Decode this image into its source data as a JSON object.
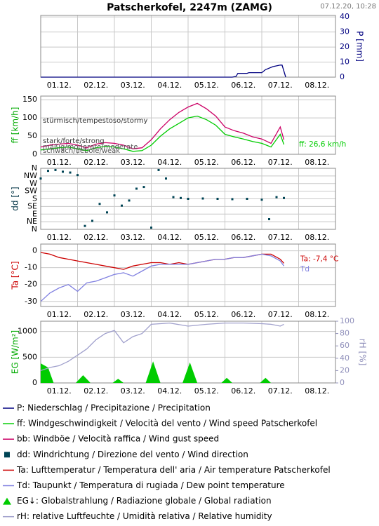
{
  "header": {
    "title": "Patscherkofel, 2247m (ZAMG)",
    "timestamp": "07.12.20, 10:28"
  },
  "chart_data": [
    {
      "type": "line",
      "y_axis_position": "right",
      "ylabel": "P [mm]",
      "label_color": "#000080",
      "xlim": [
        0,
        8
      ],
      "xticks": [
        {
          "value": 0.5,
          "label": "01.12."
        },
        {
          "value": 1.5,
          "label": "02.12."
        },
        {
          "value": 2.5,
          "label": "03.12."
        },
        {
          "value": 3.5,
          "label": "04.12."
        },
        {
          "value": 4.5,
          "label": "05.12."
        },
        {
          "value": 5.5,
          "label": "06.12."
        },
        {
          "value": 6.5,
          "label": "07.12."
        },
        {
          "value": 7.5,
          "label": "08.12."
        }
      ],
      "ylim": [
        0,
        41
      ],
      "yticks": [
        0,
        10,
        20,
        30,
        40
      ],
      "grid": true,
      "series": [
        {
          "name": "P: Niederschlag / Precipitazione / Precipitation",
          "color": "#000080",
          "x": [
            0,
            5.2,
            5.3,
            5.35,
            5.6,
            5.65,
            6.0,
            6.1,
            6.3,
            6.5,
            6.55,
            6.65
          ],
          "values": [
            0,
            0,
            0.5,
            2.5,
            2.5,
            3,
            3,
            5,
            7,
            8,
            8,
            0
          ]
        }
      ]
    },
    {
      "type": "line",
      "ylabel": "ff [km/h]",
      "label_color": "#00aa00",
      "xlim": [
        0,
        8
      ],
      "xticks": [
        {
          "value": 0.5,
          "label": "01.12."
        },
        {
          "value": 1.5,
          "label": "02.12."
        },
        {
          "value": 2.5,
          "label": "03.12."
        },
        {
          "value": 3.5,
          "label": "04.12."
        },
        {
          "value": 4.5,
          "label": "05.12."
        },
        {
          "value": 5.5,
          "label": "06.12."
        },
        {
          "value": 6.5,
          "label": "07.12."
        },
        {
          "value": 7.5,
          "label": "08.12."
        }
      ],
      "ylim": [
        0,
        160
      ],
      "yticks": [
        0,
        50,
        100,
        150
      ],
      "grid": true,
      "annotations": [
        "stürmisch/tempestoso/stormy",
        "stark/forte/strong",
        "mäßig/moderato/moderate",
        "schwach/debole/weak",
        "ff: 26,6 km/h"
      ],
      "x": [
        0,
        0.25,
        0.5,
        0.75,
        1,
        1.25,
        1.5,
        1.75,
        2,
        2.25,
        2.5,
        2.75,
        3,
        3.25,
        3.5,
        3.75,
        4,
        4.25,
        4.5,
        4.75,
        5,
        5.25,
        5.5,
        5.75,
        6,
        6.25,
        6.5,
        6.6
      ],
      "series": [
        {
          "name": "ff: Windgeschwindigkeit / Velocità del vento / Wind speed  Patscherkofel",
          "color": "#00cc00",
          "values": [
            12,
            15,
            18,
            20,
            15,
            10,
            18,
            22,
            20,
            15,
            8,
            10,
            25,
            50,
            70,
            85,
            100,
            105,
            95,
            80,
            55,
            48,
            42,
            35,
            30,
            20,
            55,
            27
          ]
        },
        {
          "name": "bb: Windböe / Velocità raffica / Wind gust speed",
          "color": "#cc0066",
          "values": [
            20,
            25,
            28,
            30,
            25,
            18,
            28,
            32,
            30,
            25,
            15,
            18,
            40,
            70,
            95,
            115,
            130,
            140,
            125,
            105,
            75,
            65,
            58,
            48,
            42,
            30,
            75,
            40
          ]
        }
      ]
    },
    {
      "type": "scatter",
      "ylabel": "dd [°]",
      "label_color": "#003344",
      "xlim": [
        0,
        8
      ],
      "xticks": [
        {
          "value": 0.5,
          "label": "01.12."
        },
        {
          "value": 1.5,
          "label": "02.12."
        },
        {
          "value": 2.5,
          "label": "03.12."
        },
        {
          "value": 3.5,
          "label": "04.12."
        },
        {
          "value": 4.5,
          "label": "05.12."
        },
        {
          "value": 5.5,
          "label": "06.12."
        },
        {
          "value": 6.5,
          "label": "07.12."
        },
        {
          "value": 7.5,
          "label": "08.12."
        }
      ],
      "ylim": [
        0,
        360
      ],
      "yticks": [
        {
          "value": 0,
          "label": "N"
        },
        {
          "value": 45,
          "label": "NE"
        },
        {
          "value": 90,
          "label": "E"
        },
        {
          "value": 135,
          "label": "SE"
        },
        {
          "value": 180,
          "label": "S"
        },
        {
          "value": 225,
          "label": "SW"
        },
        {
          "value": 270,
          "label": "W"
        },
        {
          "value": 315,
          "label": "NW"
        },
        {
          "value": 360,
          "label": "N"
        }
      ],
      "grid": true,
      "x": [
        0,
        0.2,
        0.4,
        0.6,
        0.8,
        1.0,
        1.2,
        1.4,
        1.6,
        1.8,
        2.0,
        2.2,
        2.4,
        2.6,
        2.8,
        3.0,
        3.2,
        3.4,
        3.6,
        3.8,
        4.0,
        4.4,
        4.8,
        5.2,
        5.6,
        6.0,
        6.2,
        6.4,
        6.6
      ],
      "series": [
        {
          "name": "dd: Windrichtung / Direzione del vento / Wind direction",
          "color": "#004455",
          "values": [
            300,
            345,
            350,
            340,
            335,
            320,
            20,
            50,
            150,
            100,
            200,
            140,
            170,
            240,
            250,
            10,
            350,
            300,
            190,
            185,
            180,
            182,
            180,
            178,
            180,
            175,
            60,
            190,
            185
          ]
        }
      ]
    },
    {
      "type": "line",
      "ylabel": "Ta [°C]",
      "label_color": "#cc0000",
      "xlim": [
        0,
        8
      ],
      "xticks": [
        {
          "value": 0.5,
          "label": "01.12."
        },
        {
          "value": 1.5,
          "label": "02.12."
        },
        {
          "value": 2.5,
          "label": "03.12."
        },
        {
          "value": 3.5,
          "label": "04.12."
        },
        {
          "value": 4.5,
          "label": "05.12."
        },
        {
          "value": 5.5,
          "label": "06.12."
        },
        {
          "value": 6.5,
          "label": "07.12."
        },
        {
          "value": 7.5,
          "label": "08.12."
        }
      ],
      "ylim": [
        -33,
        4
      ],
      "yticks": [
        0,
        -10,
        -20,
        -30
      ],
      "grid": true,
      "annotations": [
        "Ta: -7,4 °C",
        "Td"
      ],
      "x": [
        0,
        0.25,
        0.5,
        0.75,
        1,
        1.25,
        1.5,
        1.75,
        2,
        2.25,
        2.5,
        2.75,
        3,
        3.25,
        3.5,
        3.75,
        4,
        4.25,
        4.5,
        4.75,
        5,
        5.25,
        5.5,
        5.75,
        6,
        6.25,
        6.5,
        6.6
      ],
      "series": [
        {
          "name": "Ta: Lufttemperatur / Temperatura dell' aria / Air temperature  Patscherkofel",
          "color": "#cc0000",
          "values": [
            -1,
            -2,
            -4,
            -5,
            -6,
            -7,
            -8,
            -9,
            -10,
            -11,
            -9,
            -8,
            -7,
            -7,
            -8,
            -7,
            -8,
            -7,
            -6,
            -5,
            -5,
            -4,
            -4,
            -3,
            -2,
            -2,
            -5,
            -7.4
          ]
        },
        {
          "name": "Td: Taupunkt / Temperatura di rugiada / Dew point temperature",
          "color": "#8080e0",
          "values": [
            -30,
            -25,
            -22,
            -20,
            -24,
            -19,
            -18,
            -16,
            -14,
            -13,
            -15,
            -12,
            -9,
            -8,
            -8,
            -8,
            -8,
            -7,
            -6,
            -5,
            -5,
            -4,
            -4,
            -3,
            -2,
            -3,
            -6,
            -9
          ]
        }
      ]
    },
    {
      "type": "line",
      "ylabel": "EG [W/m²]",
      "label_color": "#00aa00",
      "y2label": "rH [%]",
      "y2_color": "#9090bb",
      "xlim": [
        0,
        8
      ],
      "xticks": [
        {
          "value": 0.5,
          "label": "01.12."
        },
        {
          "value": 1.5,
          "label": "02.12."
        },
        {
          "value": 2.5,
          "label": "03.12."
        },
        {
          "value": 3.5,
          "label": "04.12."
        },
        {
          "value": 4.5,
          "label": "05.12."
        },
        {
          "value": 5.5,
          "label": "06.12."
        },
        {
          "value": 6.5,
          "label": "07.12."
        },
        {
          "value": 7.5,
          "label": "08.12."
        }
      ],
      "ylim": [
        0,
        1200
      ],
      "yticks": [
        0,
        500,
        1000
      ],
      "y2lim": [
        0,
        100
      ],
      "y2ticks": [
        0,
        20,
        40,
        60,
        80,
        100
      ],
      "grid": true,
      "series": [
        {
          "name": "EG↓: Globalstrahlung / Radiazione globale / Global radiation",
          "color": "#00cc00",
          "type": "area",
          "x": [
            0,
            0.2,
            0.35,
            0.95,
            1.15,
            1.35,
            1.95,
            2.1,
            2.25,
            2.85,
            3.05,
            3.25,
            3.85,
            4.05,
            4.25,
            4.9,
            5.05,
            5.2,
            5.95,
            6.1,
            6.25
          ],
          "values": [
            380,
            300,
            0,
            0,
            150,
            0,
            0,
            80,
            0,
            0,
            420,
            0,
            0,
            400,
            0,
            0,
            100,
            0,
            0,
            100,
            0
          ]
        },
        {
          "name": "rH: relative Luftfeuchte / Umidità relativa / Relative humidity",
          "color": "#a0a0cc",
          "axis": "y2",
          "x": [
            0,
            0.25,
            0.5,
            0.75,
            1,
            1.25,
            1.5,
            1.75,
            2,
            2.25,
            2.5,
            2.75,
            3,
            3.5,
            4,
            4.5,
            5,
            5.5,
            6,
            6.25,
            6.5,
            6.6
          ],
          "values": [
            20,
            25,
            28,
            35,
            45,
            55,
            70,
            80,
            85,
            65,
            75,
            80,
            95,
            97,
            92,
            95,
            97,
            97,
            96,
            95,
            92,
            95
          ]
        }
      ]
    }
  ]
}
